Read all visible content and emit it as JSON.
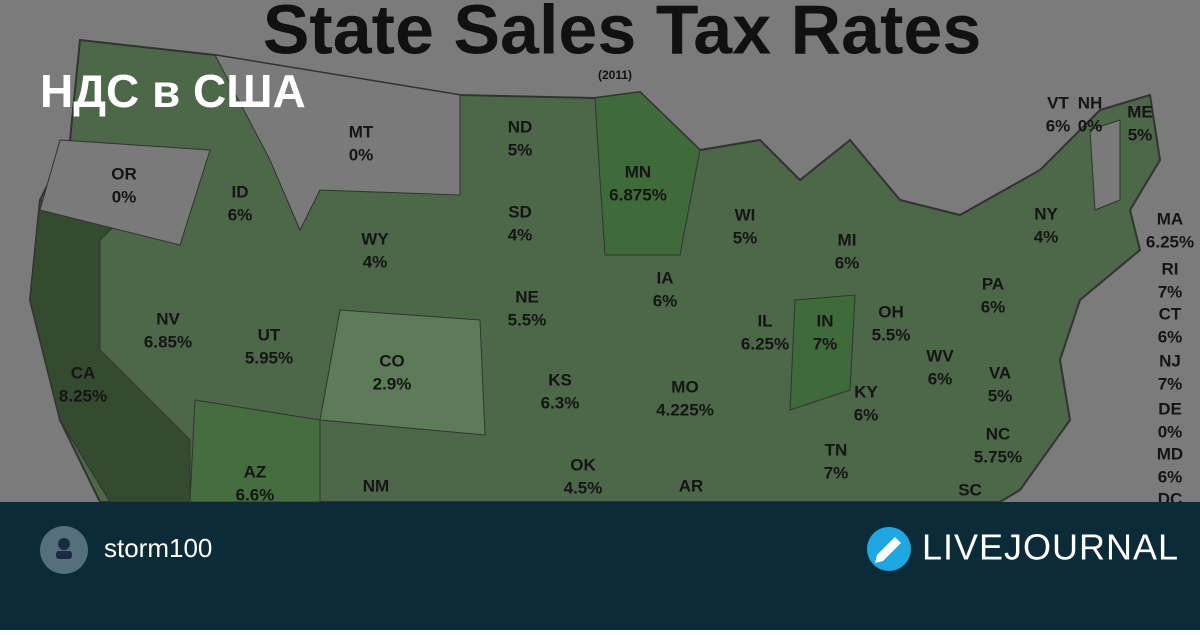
{
  "map": {
    "title": "State Sales Tax Rates",
    "subtitle": "(2011)",
    "states": [
      {
        "code": "MT",
        "rate": "0%"
      },
      {
        "code": "OR",
        "rate": "0%"
      },
      {
        "code": "ND",
        "rate": "5%"
      },
      {
        "code": "MN",
        "rate": "6.875%"
      },
      {
        "code": "ID",
        "rate": "6%"
      },
      {
        "code": "SD",
        "rate": "4%"
      },
      {
        "code": "WY",
        "rate": "4%"
      },
      {
        "code": "WI",
        "rate": "5%"
      },
      {
        "code": "NY",
        "rate": "4%"
      },
      {
        "code": "MI",
        "rate": "6%"
      },
      {
        "code": "NV",
        "rate": "6.85%"
      },
      {
        "code": "IA",
        "rate": "6%"
      },
      {
        "code": "NE",
        "rate": "5.5%"
      },
      {
        "code": "UT",
        "rate": "5.95%"
      },
      {
        "code": "IL",
        "rate": "6.25%"
      },
      {
        "code": "IN",
        "rate": "7%"
      },
      {
        "code": "OH",
        "rate": "5.5%"
      },
      {
        "code": "PA",
        "rate": "6%"
      },
      {
        "code": "CA",
        "rate": "8.25%"
      },
      {
        "code": "CO",
        "rate": "2.9%"
      },
      {
        "code": "WV",
        "rate": "6%"
      },
      {
        "code": "VA",
        "rate": "5%"
      },
      {
        "code": "KS",
        "rate": "6.3%"
      },
      {
        "code": "MO",
        "rate": "4.225%"
      },
      {
        "code": "KY",
        "rate": "6%"
      },
      {
        "code": "NC",
        "rate": "5.75%"
      },
      {
        "code": "TN",
        "rate": "7%"
      },
      {
        "code": "AZ",
        "rate": "6.6%"
      },
      {
        "code": "NM"
      },
      {
        "code": "OK",
        "rate": "4.5%"
      },
      {
        "code": "AR"
      },
      {
        "code": "SC"
      },
      {
        "code": "VT",
        "rate": "6%"
      },
      {
        "code": "NH",
        "rate": "0%"
      },
      {
        "code": "ME",
        "rate": "5%"
      },
      {
        "code": "MA",
        "rate": "6.25%"
      },
      {
        "code": "RI",
        "rate": "7%"
      },
      {
        "code": "CT",
        "rate": "6%"
      },
      {
        "code": "NJ",
        "rate": "7%"
      },
      {
        "code": "DE",
        "rate": "0%"
      },
      {
        "code": "MD",
        "rate": "6%"
      },
      {
        "code": "DC"
      }
    ]
  },
  "overlay": {
    "headline": "НДС в США"
  },
  "footer": {
    "username": "storm100",
    "brand": "LIVEJOURNAL"
  }
}
